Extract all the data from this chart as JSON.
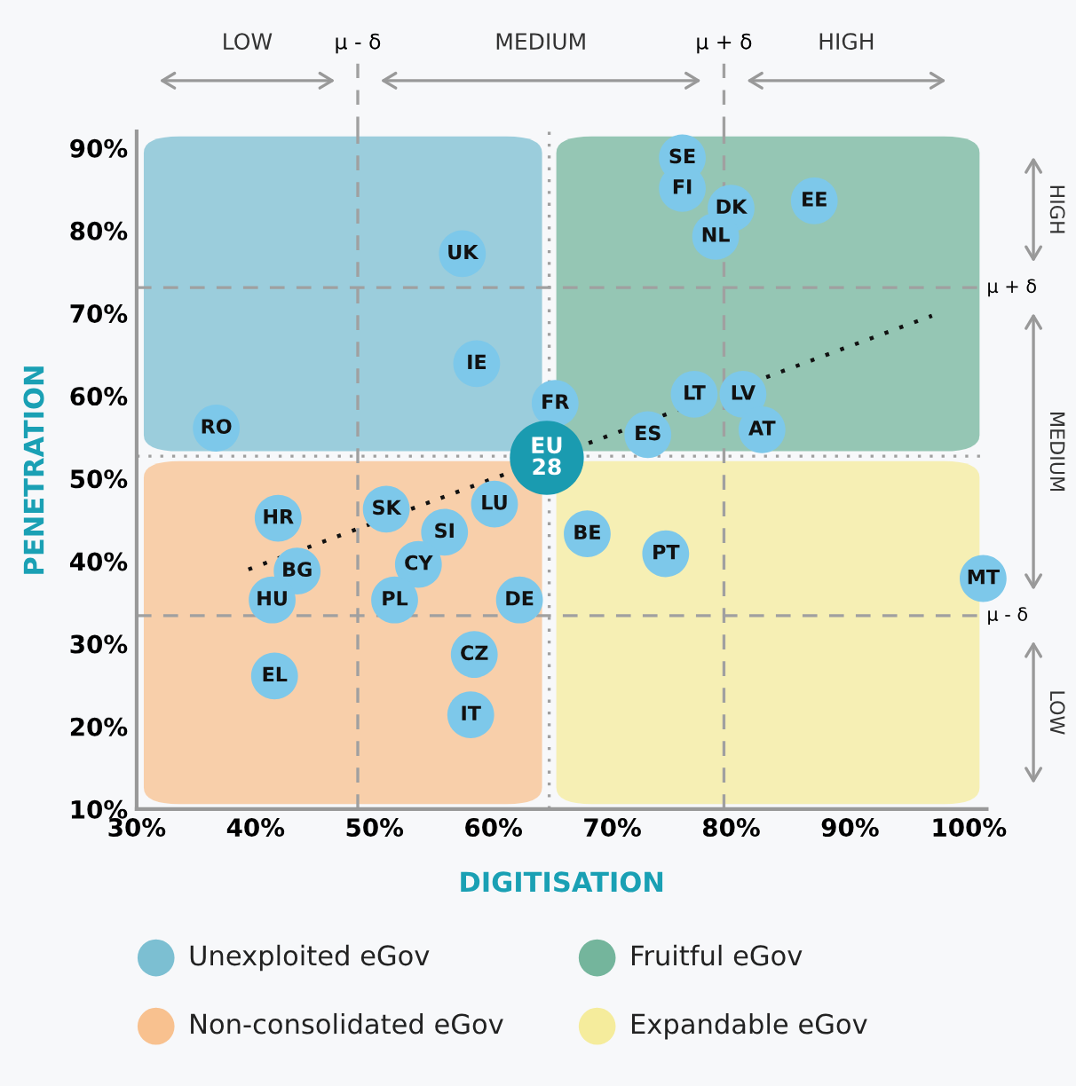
{
  "chart_data": {
    "type": "scatter",
    "xlabel": "DIGITISATION",
    "ylabel": "PENETRATION",
    "xlim": [
      30,
      101.5
    ],
    "ylim": [
      10,
      92
    ],
    "xticks": [
      {
        "value": 30,
        "label": "30%"
      },
      {
        "value": 40,
        "label": "40%"
      },
      {
        "value": 50,
        "label": "50%"
      },
      {
        "value": 60,
        "label": "60%"
      },
      {
        "value": 70,
        "label": "70%"
      },
      {
        "value": 80,
        "label": "80%"
      },
      {
        "value": 90,
        "label": "90%"
      },
      {
        "value": 100,
        "label": "100%"
      }
    ],
    "yticks": [
      {
        "value": 10,
        "label": "10%"
      },
      {
        "value": 20,
        "label": "20%"
      },
      {
        "value": 30,
        "label": "30%"
      },
      {
        "value": 40,
        "label": "40%"
      },
      {
        "value": 50,
        "label": "50%"
      },
      {
        "value": 60,
        "label": "60%"
      },
      {
        "value": 70,
        "label": "70%"
      },
      {
        "value": 80,
        "label": "80%"
      },
      {
        "value": 90,
        "label": "90%"
      }
    ],
    "grid": false,
    "legend": false,
    "marker": "circle",
    "series": [
      {
        "type": "scatter",
        "color": "#7dc8ea",
        "x": [
          75.9,
          75.9,
          80.0,
          78.7,
          87.0,
          57.4,
          58.6,
          65.2,
          36.7,
          76.9,
          81.0,
          82.6,
          73.0,
          41.9,
          43.5,
          41.4,
          41.6,
          51.0,
          60.1,
          55.9,
          53.7,
          51.7,
          62.2,
          58.4,
          58.1,
          67.9,
          74.5,
          101.2
        ],
        "values": [
          88.8,
          85.1,
          82.7,
          79.3,
          83.6,
          77.2,
          63.9,
          59.1,
          56.1,
          60.2,
          60.2,
          55.9,
          55.3,
          45.2,
          38.8,
          35.3,
          26.1,
          46.3,
          46.9,
          43.5,
          39.6,
          35.3,
          35.3,
          28.7,
          21.4,
          43.3,
          40.9,
          37.9
        ]
      },
      {
        "type": "scatter",
        "color": "#1a9bb0",
        "x": [
          64.5
        ],
        "values": [
          52.5
        ]
      },
      {
        "type": "line",
        "color": "#111111",
        "line_style": "dotted",
        "marker": "none",
        "x": [
          39.4,
          96.9
        ],
        "values": [
          39.0,
          69.7
        ]
      }
    ],
    "ref_lines": [
      {
        "axis": "x",
        "value": 48.6,
        "label": "μ - δ",
        "line_style": "dashed",
        "color": "#a0a0a0"
      },
      {
        "axis": "x",
        "value": 64.7,
        "label": null,
        "line_style": "dotted",
        "color": "#a0a0a0"
      },
      {
        "axis": "x",
        "value": 79.4,
        "label": "μ + δ",
        "line_style": "dashed",
        "color": "#a0a0a0"
      },
      {
        "axis": "y",
        "value": 73.1,
        "label": "μ + δ",
        "line_style": "dashed",
        "color": "#a0a0a0"
      },
      {
        "axis": "y",
        "value": 52.7,
        "label": null,
        "line_style": "dotted",
        "color": "#a0a0a0"
      },
      {
        "axis": "y",
        "value": 33.4,
        "label": "μ - δ",
        "line_style": "dashed",
        "color": "#a0a0a0"
      }
    ],
    "annotations": [
      {
        "text": "SE",
        "x": 75.9,
        "y": 88.8
      },
      {
        "text": "FI",
        "x": 75.9,
        "y": 85.1
      },
      {
        "text": "DK",
        "x": 80.0,
        "y": 82.7
      },
      {
        "text": "NL",
        "x": 78.7,
        "y": 79.3
      },
      {
        "text": "EE",
        "x": 87.0,
        "y": 83.6
      },
      {
        "text": "UK",
        "x": 57.4,
        "y": 77.2
      },
      {
        "text": "IE",
        "x": 58.6,
        "y": 63.9
      },
      {
        "text": "FR",
        "x": 65.2,
        "y": 59.1
      },
      {
        "text": "RO",
        "x": 36.7,
        "y": 56.1
      },
      {
        "text": "LT",
        "x": 76.9,
        "y": 60.2
      },
      {
        "text": "LV",
        "x": 81.0,
        "y": 60.2
      },
      {
        "text": "AT",
        "x": 82.6,
        "y": 55.9
      },
      {
        "text": "ES",
        "x": 73.0,
        "y": 55.3
      },
      {
        "text": "HR",
        "x": 41.9,
        "y": 45.2
      },
      {
        "text": "BG",
        "x": 43.5,
        "y": 38.8
      },
      {
        "text": "HU",
        "x": 41.4,
        "y": 35.3
      },
      {
        "text": "EL",
        "x": 41.6,
        "y": 26.1
      },
      {
        "text": "SK",
        "x": 51.0,
        "y": 46.3
      },
      {
        "text": "LU",
        "x": 60.1,
        "y": 46.9
      },
      {
        "text": "SI",
        "x": 55.9,
        "y": 43.5
      },
      {
        "text": "CY",
        "x": 53.7,
        "y": 39.6
      },
      {
        "text": "PL",
        "x": 51.7,
        "y": 35.3
      },
      {
        "text": "DE",
        "x": 62.2,
        "y": 35.3
      },
      {
        "text": "CZ",
        "x": 58.4,
        "y": 28.7
      },
      {
        "text": "IT",
        "x": 58.1,
        "y": 21.4
      },
      {
        "text": "BE",
        "x": 67.9,
        "y": 43.3
      },
      {
        "text": "PT",
        "x": 74.5,
        "y": 40.9
      },
      {
        "text": "MT",
        "x": 101.2,
        "y": 37.9
      },
      {
        "text": "EU\n28",
        "x": 64.5,
        "y": 52.5
      },
      "LOW",
      "MEDIUM",
      "HIGH",
      "HIGH",
      "MEDIUM",
      "LOW",
      "Unexploited eGov",
      "Fruitful eGov",
      "Non-consolidated eGov",
      "Expandable eGov"
    ]
  }
}
